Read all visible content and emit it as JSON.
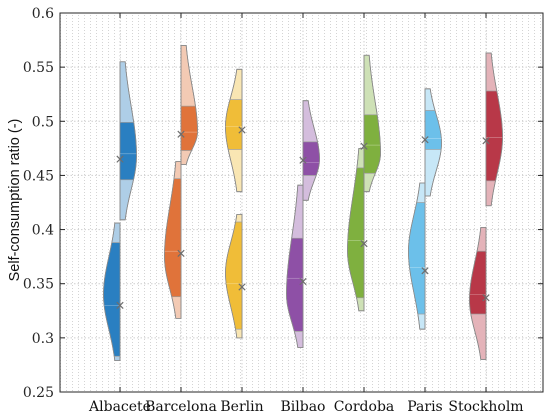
{
  "chart_data": {
    "type": "violin",
    "title": "",
    "ylabel": "Self-consumption ratio (-)",
    "xlabel": "",
    "ylim": [
      0.25,
      0.6
    ],
    "yticks": [
      0.25,
      0.3,
      0.35,
      0.4,
      0.45,
      0.5,
      0.55,
      0.6
    ],
    "ytick_labels": [
      "0.25",
      "0.3",
      "0.35",
      "0.4",
      "0.45",
      "0.5",
      "0.55",
      "0.6"
    ],
    "grid": true,
    "legend": "none",
    "mean_marker": "×",
    "categories": [
      "Albacete",
      "Barcelona",
      "Berlin",
      "Bilbao",
      "Cordoba",
      "Paris",
      "Stockholm"
    ],
    "colors": [
      "#2a7fc1",
      "#e0733a",
      "#f0bd38",
      "#8e50a6",
      "#7fb03f",
      "#6cc0ea",
      "#b83848"
    ],
    "groups": [
      {
        "name": "Albacete",
        "low": {
          "min": 0.279,
          "q1": 0.283,
          "median": 0.33,
          "q3": 0.388,
          "max": 0.406,
          "mean": 0.33,
          "side": "left",
          "peak": 0.34
        },
        "high": {
          "min": 0.409,
          "q1": 0.446,
          "median": 0.47,
          "q3": 0.499,
          "max": 0.555,
          "mean": 0.465,
          "side": "right",
          "peak": 0.468
        }
      },
      {
        "name": "Barcelona",
        "low": {
          "min": 0.318,
          "q1": 0.338,
          "median": 0.38,
          "q3": 0.447,
          "max": 0.463,
          "mean": 0.378,
          "side": "left",
          "peak": 0.375
        },
        "high": {
          "min": 0.46,
          "q1": 0.473,
          "median": 0.49,
          "q3": 0.514,
          "max": 0.57,
          "mean": 0.488,
          "side": "right",
          "peak": 0.49
        }
      },
      {
        "name": "Berlin",
        "low": {
          "min": 0.3,
          "q1": 0.308,
          "median": 0.35,
          "q3": 0.407,
          "max": 0.414,
          "mean": 0.347,
          "side": "left",
          "peak": 0.36
        },
        "high": {
          "min": 0.435,
          "q1": 0.474,
          "median": 0.495,
          "q3": 0.52,
          "max": 0.548,
          "mean": 0.492,
          "side": "left",
          "peak": 0.495
        }
      },
      {
        "name": "Bilbao",
        "low": {
          "min": 0.291,
          "q1": 0.306,
          "median": 0.355,
          "q3": 0.392,
          "max": 0.441,
          "mean": 0.352,
          "side": "left",
          "peak": 0.34
        },
        "high": {
          "min": 0.427,
          "q1": 0.45,
          "median": 0.462,
          "q3": 0.481,
          "max": 0.519,
          "mean": 0.464,
          "side": "right",
          "peak": 0.465
        }
      },
      {
        "name": "Cordoba",
        "low": {
          "min": 0.325,
          "q1": 0.337,
          "median": 0.39,
          "q3": 0.457,
          "max": 0.475,
          "mean": 0.387,
          "side": "left",
          "peak": 0.38
        },
        "high": {
          "min": 0.435,
          "q1": 0.452,
          "median": 0.478,
          "q3": 0.506,
          "max": 0.561,
          "mean": 0.477,
          "side": "right",
          "peak": 0.47
        }
      },
      {
        "name": "Paris",
        "low": {
          "min": 0.308,
          "q1": 0.322,
          "median": 0.365,
          "q3": 0.425,
          "max": 0.443,
          "mean": 0.362,
          "side": "left",
          "peak": 0.38
        },
        "high": {
          "min": 0.431,
          "q1": 0.474,
          "median": 0.484,
          "q3": 0.51,
          "max": 0.53,
          "mean": 0.483,
          "side": "right",
          "peak": 0.48
        }
      },
      {
        "name": "Stockholm",
        "low": {
          "min": 0.28,
          "q1": 0.322,
          "median": 0.34,
          "q3": 0.38,
          "max": 0.402,
          "mean": 0.337,
          "side": "left",
          "peak": 0.335
        },
        "high": {
          "min": 0.422,
          "q1": 0.445,
          "median": 0.485,
          "q3": 0.528,
          "max": 0.563,
          "mean": 0.482,
          "side": "right",
          "peak": 0.485
        }
      }
    ]
  }
}
